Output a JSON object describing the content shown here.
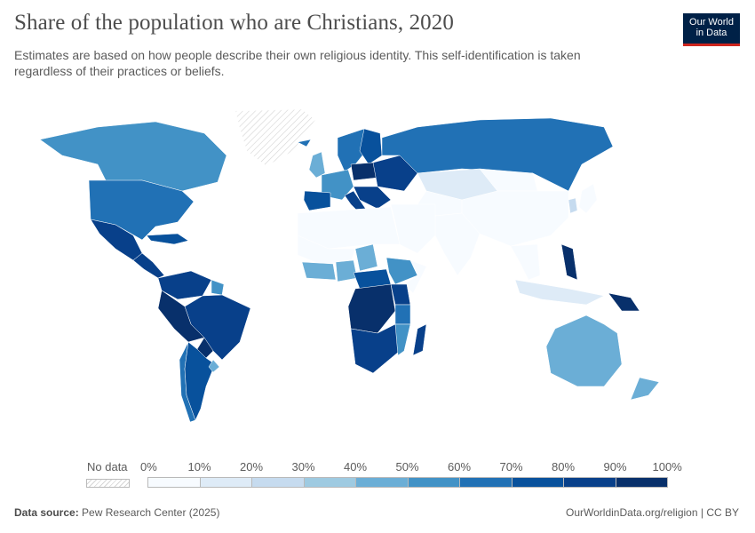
{
  "header": {
    "title": "Share of the population who are Christians, 2020",
    "subtitle": "Estimates are based on how people describe their own religious identity. This self-identification is taken regardless of their practices or beliefs."
  },
  "logo": {
    "line1": "Our World",
    "line2": "in Data"
  },
  "legend": {
    "no_data_label": "No data",
    "ticks": [
      "0%",
      "10%",
      "20%",
      "30%",
      "40%",
      "50%",
      "60%",
      "70%",
      "80%",
      "90%",
      "100%"
    ],
    "colors": [
      "#f7fbff",
      "#deebf7",
      "#c6dbef",
      "#9ecae1",
      "#6baed6",
      "#4292c6",
      "#2171b5",
      "#08519c",
      "#08408a",
      "#08306b"
    ],
    "no_data_color": "#dedede"
  },
  "regions": [
    {
      "name": "Canada",
      "share": 55
    },
    {
      "name": "United States",
      "share": 64
    },
    {
      "name": "Mexico",
      "share": 85
    },
    {
      "name": "Central America",
      "share": 88
    },
    {
      "name": "Caribbean",
      "share": 70
    },
    {
      "name": "Greenland",
      "share": null
    },
    {
      "name": "Colombia & Venezuela",
      "share": 88
    },
    {
      "name": "Guianas",
      "share": 55
    },
    {
      "name": "Brazil",
      "share": 84
    },
    {
      "name": "Peru & Bolivia",
      "share": 90
    },
    {
      "name": "Paraguay",
      "share": 95
    },
    {
      "name": "Chile",
      "share": 68
    },
    {
      "name": "Argentina",
      "share": 75
    },
    {
      "name": "Uruguay",
      "share": 44
    },
    {
      "name": "Iceland & Scandinavia",
      "share": 68
    },
    {
      "name": "Finland",
      "share": 70
    },
    {
      "name": "United Kingdom",
      "share": 46
    },
    {
      "name": "Western Europe",
      "share": 55
    },
    {
      "name": "Spain & Portugal",
      "share": 70
    },
    {
      "name": "Italy",
      "share": 80
    },
    {
      "name": "Poland",
      "share": 90
    },
    {
      "name": "Eastern Europe",
      "share": 88
    },
    {
      "name": "Balkans",
      "share": 82
    },
    {
      "name": "Russia",
      "share": 65
    },
    {
      "name": "Kazakhstan",
      "share": 17
    },
    {
      "name": "Central Asia",
      "share": 5
    },
    {
      "name": "Mongolia",
      "share": 3
    },
    {
      "name": "China",
      "share": 2
    },
    {
      "name": "Korea",
      "share": 28
    },
    {
      "name": "Japan",
      "share": 1
    },
    {
      "name": "South Asia",
      "share": 2
    },
    {
      "name": "Southeast Asia",
      "share": 7
    },
    {
      "name": "Philippines",
      "share": 90
    },
    {
      "name": "Indonesia",
      "share": 10
    },
    {
      "name": "Papua New Guinea",
      "share": 98
    },
    {
      "name": "Australia",
      "share": 45
    },
    {
      "name": "New Zealand",
      "share": 40
    },
    {
      "name": "Middle East",
      "share": 2
    },
    {
      "name": "North Africa",
      "share": 1
    },
    {
      "name": "Sahel",
      "share": 4
    },
    {
      "name": "Chad",
      "share": 40
    },
    {
      "name": "West Africa coast",
      "share": 48
    },
    {
      "name": "Nigeria",
      "share": 46
    },
    {
      "name": "Cameroon & CAR",
      "share": 70
    },
    {
      "name": "Ethiopia",
      "share": 58
    },
    {
      "name": "Somalia",
      "share": 0.1
    },
    {
      "name": "Kenya & Uganda",
      "share": 85
    },
    {
      "name": "DR Congo & Angola",
      "share": 93
    },
    {
      "name": "Tanzania",
      "share": 60
    },
    {
      "name": "Southern Africa",
      "share": 88
    },
    {
      "name": "Mozambique",
      "share": 58
    },
    {
      "name": "Madagascar",
      "share": 80
    }
  ],
  "footer": {
    "source_label": "Data source:",
    "source_value": "Pew Research Center (2025)",
    "link": "OurWorldinData.org/religion | CC BY"
  }
}
